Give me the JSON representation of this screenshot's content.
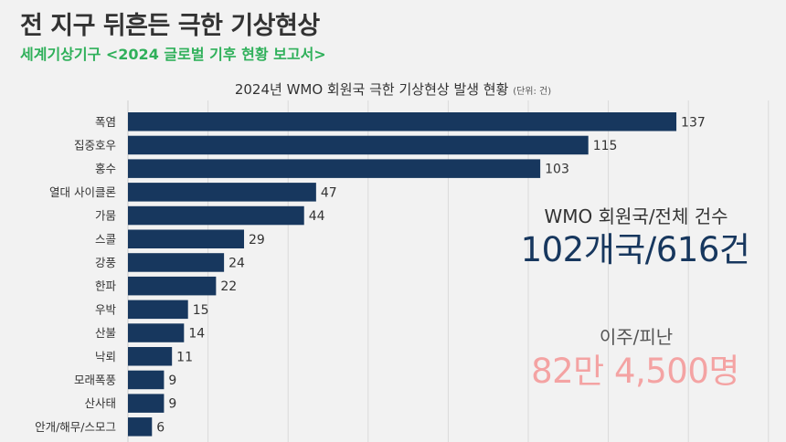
{
  "headline": "전 지구 뒤흔든 극한 기상현상",
  "source": "세계기상기구 <2024 글로벌 기후 현황 보고서>",
  "chart_title": "2024년 WMO 회원국 극한 기상현상 발생 현황",
  "chart_unit": "(단위: 건)",
  "stat_members": {
    "label": "WMO 회원국/전체 건수",
    "value": "102개국/616건"
  },
  "stat_displaced": {
    "label": "이주/피난",
    "value": "82만 4,500명"
  },
  "colors": {
    "bar": "#17375e",
    "stat_members": "#17375e",
    "stat_displaced": "#f4a3a3",
    "source": "#2fb05a"
  },
  "chart_data": {
    "type": "bar",
    "orientation": "horizontal",
    "categories": [
      "폭염",
      "집중호우",
      "홍수",
      "열대 사이클론",
      "가뭄",
      "스콜",
      "강풍",
      "한파",
      "우박",
      "산불",
      "낙뢰",
      "모래폭풍",
      "산사태",
      "안개/해무/스모그"
    ],
    "values": [
      137,
      115,
      103,
      47,
      44,
      29,
      24,
      22,
      15,
      14,
      11,
      9,
      9,
      6
    ],
    "xlim": [
      0,
      160
    ],
    "grid": true
  }
}
